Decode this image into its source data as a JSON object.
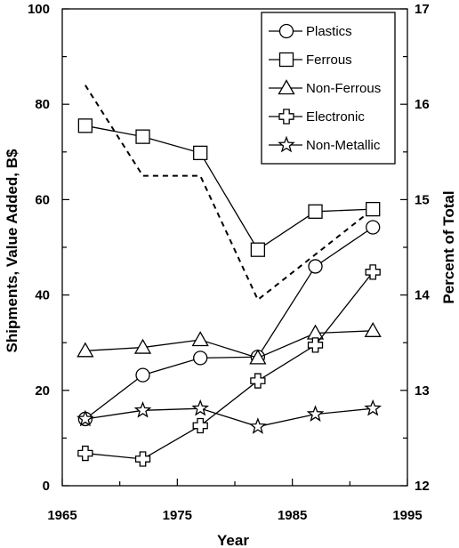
{
  "chart_data": {
    "type": "line",
    "xlabel": "Year",
    "ylabel_left": "Shipments, Value Added, B$",
    "ylabel_right": "Percent of Total",
    "xlim": [
      1965,
      1995
    ],
    "ylim_left": [
      0,
      100
    ],
    "ylim_right": [
      12,
      17
    ],
    "x_ticks": [
      1965,
      1975,
      1985,
      1995
    ],
    "y_ticks_left": [
      0,
      20,
      40,
      60,
      80,
      100
    ],
    "y_ticks_right": [
      12,
      13,
      14,
      15,
      16,
      17
    ],
    "legend_position": "top-right",
    "grid": false,
    "series": [
      {
        "name": "Plastics",
        "marker": "circle",
        "x": [
          1967,
          1972,
          1977,
          1982,
          1987,
          1992
        ],
        "values": [
          14,
          23.2,
          26.8,
          27,
          46,
          54.2
        ]
      },
      {
        "name": "Ferrous",
        "marker": "square",
        "x": [
          1967,
          1972,
          1977,
          1982,
          1987,
          1992
        ],
        "values": [
          75.5,
          73.2,
          69.8,
          49.5,
          57.5,
          58
        ]
      },
      {
        "name": "Non-Ferrous",
        "marker": "triangle",
        "x": [
          1967,
          1972,
          1977,
          1982,
          1987,
          1992
        ],
        "values": [
          28.3,
          29,
          30.6,
          26.8,
          32,
          32.5
        ]
      },
      {
        "name": "Electronic",
        "marker": "plus",
        "x": [
          1967,
          1972,
          1977,
          1982,
          1987,
          1992
        ],
        "values": [
          6.8,
          5.6,
          12.6,
          22,
          29.5,
          44.8
        ]
      },
      {
        "name": "Non-Metallic",
        "marker": "star",
        "x": [
          1967,
          1972,
          1977,
          1982,
          1987,
          1992
        ],
        "values": [
          14,
          15.8,
          16.2,
          12.4,
          15,
          16.2
        ]
      }
    ],
    "percent_series": {
      "axis": "right",
      "style": "dashed",
      "x": [
        1967,
        1972,
        1977,
        1982,
        1992
      ],
      "values": [
        16.2,
        15.25,
        15.25,
        13.95,
        14.9
      ]
    }
  }
}
